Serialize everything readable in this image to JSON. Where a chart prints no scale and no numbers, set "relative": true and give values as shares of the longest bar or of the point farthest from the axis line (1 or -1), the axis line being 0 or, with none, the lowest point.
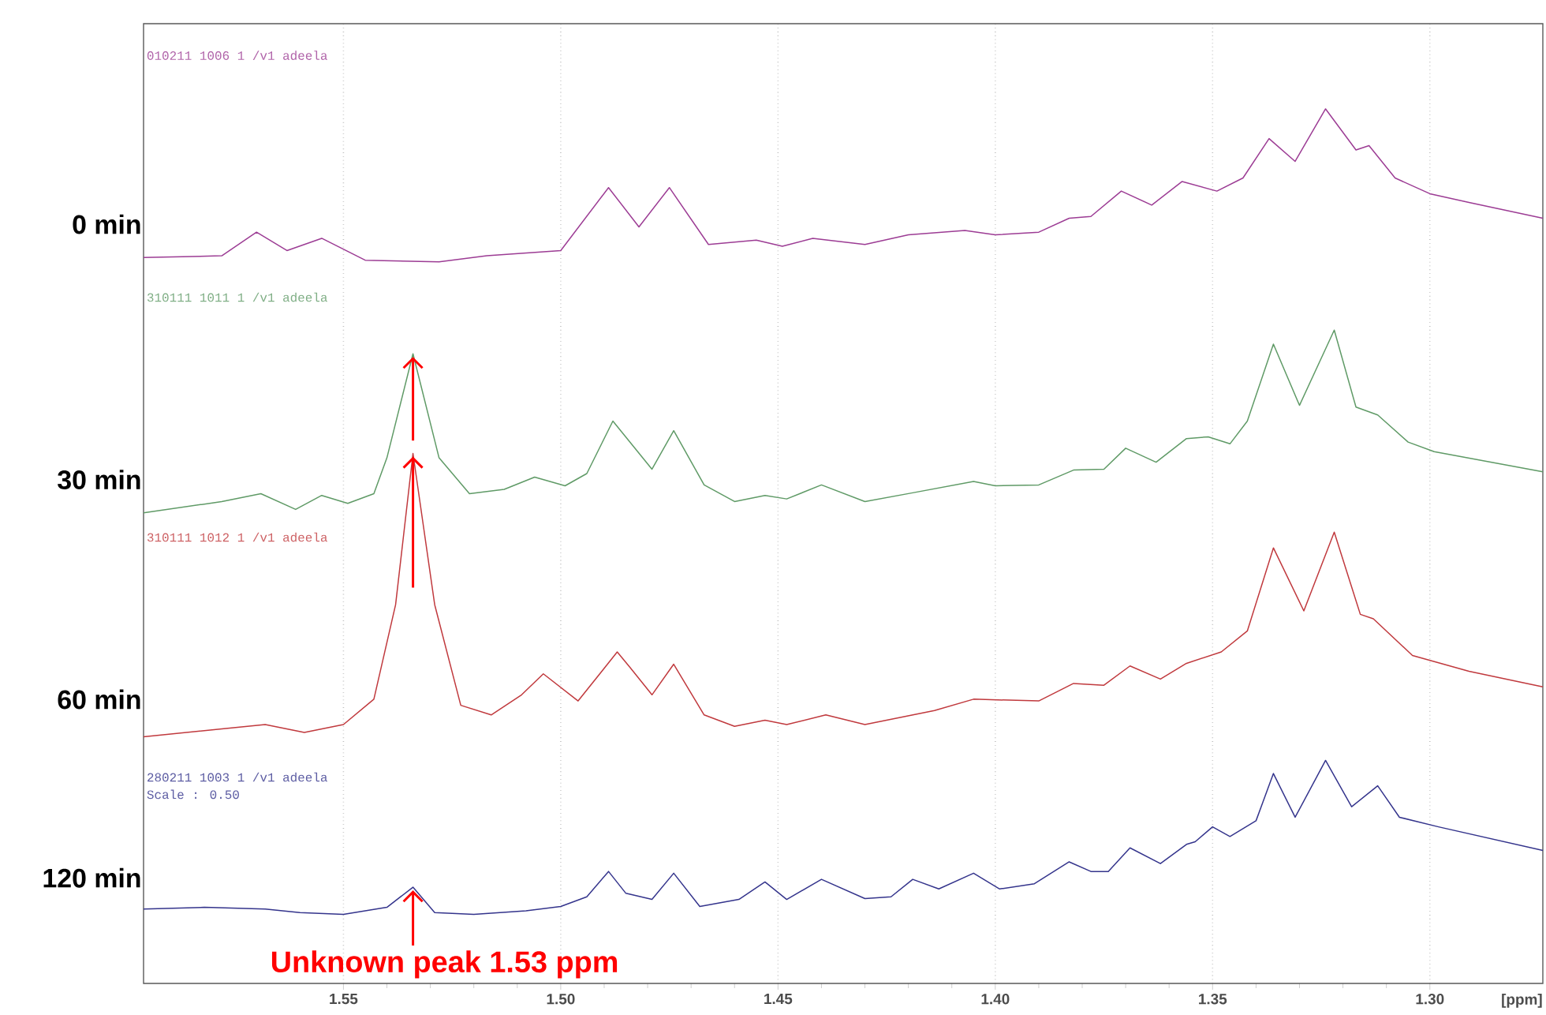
{
  "chart_data": {
    "type": "line",
    "relative": true,
    "xlabel": "[ppm]",
    "xlim": [
      1.596,
      1.274
    ],
    "xticks": [
      1.55,
      {
        "value": 1.5,
        "label": "1.50"
      },
      1.45,
      {
        "value": 1.4,
        "label": "1.40"
      },
      1.35,
      {
        "value": 1.3,
        "label": "1.30"
      }
    ],
    "grid": "x",
    "marker": "none",
    "line_style": "solid",
    "annotations": [
      "010211   1006   1   /v1   adeela",
      "310111   1011   1   /v1   adeela",
      "310111   1012   1   /v1   adeela",
      "280211   1003   1   /v1   adeela",
      "Scale : 0.50",
      {
        "text": "Unknown peak 1.53 ppm",
        "x": 1.534,
        "y": 0.11
      }
    ],
    "series": [
      {
        "name": "0 min",
        "color": "#9c3c94",
        "x": [
          1.596,
          1.578,
          1.57,
          1.563,
          1.555,
          1.545,
          1.528,
          1.517,
          1.5,
          1.489,
          1.482,
          1.475,
          1.466,
          1.455,
          1.449,
          1.442,
          1.43,
          1.42,
          1.407,
          1.4,
          1.39,
          1.383,
          1.378,
          1.371,
          1.364,
          1.357,
          1.349,
          1.343,
          1.337,
          1.331,
          1.324,
          1.317,
          1.314,
          1.308,
          1.3,
          1.291,
          1.274
        ],
        "values": [
          0.83,
          0.832,
          0.859,
          0.838,
          0.852,
          0.827,
          0.825,
          0.832,
          0.838,
          0.91,
          0.865,
          0.91,
          0.845,
          0.85,
          0.843,
          0.852,
          0.845,
          0.856,
          0.861,
          0.856,
          0.859,
          0.875,
          0.877,
          0.906,
          0.89,
          0.917,
          0.906,
          0.921,
          0.966,
          0.94,
          1.0,
          0.953,
          0.958,
          0.921,
          0.903,
          0.893,
          0.875
        ]
      },
      {
        "name": "30 min",
        "color": "#5f9a66",
        "x": [
          1.596,
          1.578,
          1.569,
          1.561,
          1.555,
          1.549,
          1.543,
          1.54,
          1.534,
          1.528,
          1.521,
          1.513,
          1.506,
          1.499,
          1.494,
          1.488,
          1.479,
          1.474,
          1.467,
          1.46,
          1.453,
          1.448,
          1.44,
          1.43,
          1.419,
          1.405,
          1.4,
          1.39,
          1.382,
          1.375,
          1.37,
          1.363,
          1.356,
          1.351,
          1.346,
          1.342,
          1.336,
          1.33,
          1.322,
          1.317,
          1.312,
          1.305,
          1.299,
          1.274
        ],
        "values": [
          0.538,
          0.551,
          0.56,
          0.542,
          0.558,
          0.549,
          0.56,
          0.601,
          0.72,
          0.601,
          0.56,
          0.565,
          0.579,
          0.569,
          0.583,
          0.643,
          0.588,
          0.632,
          0.57,
          0.551,
          0.558,
          0.554,
          0.57,
          0.551,
          0.561,
          0.574,
          0.569,
          0.57,
          0.587,
          0.588,
          0.612,
          0.596,
          0.623,
          0.625,
          0.617,
          0.643,
          0.731,
          0.661,
          0.747,
          0.659,
          0.65,
          0.619,
          0.608,
          0.585
        ]
      },
      {
        "name": "60 min",
        "color": "#c0393d",
        "x": [
          1.596,
          1.578,
          1.568,
          1.559,
          1.55,
          1.543,
          1.538,
          1.534,
          1.529,
          1.523,
          1.516,
          1.509,
          1.504,
          1.496,
          1.487,
          1.484,
          1.479,
          1.474,
          1.467,
          1.46,
          1.453,
          1.448,
          1.439,
          1.43,
          1.414,
          1.405,
          1.39,
          1.382,
          1.375,
          1.369,
          1.362,
          1.356,
          1.348,
          1.342,
          1.336,
          1.329,
          1.322,
          1.316,
          1.313,
          1.304,
          1.291,
          1.274
        ],
        "values": [
          0.282,
          0.291,
          0.296,
          0.287,
          0.296,
          0.325,
          0.433,
          0.606,
          0.433,
          0.318,
          0.307,
          0.33,
          0.354,
          0.323,
          0.379,
          0.361,
          0.33,
          0.365,
          0.307,
          0.294,
          0.301,
          0.296,
          0.307,
          0.296,
          0.312,
          0.325,
          0.323,
          0.343,
          0.341,
          0.363,
          0.348,
          0.366,
          0.379,
          0.403,
          0.498,
          0.426,
          0.516,
          0.422,
          0.417,
          0.375,
          0.357,
          0.339
        ]
      },
      {
        "name": "120 min",
        "color": "#34348c",
        "x": [
          1.596,
          1.582,
          1.568,
          1.56,
          1.55,
          1.54,
          1.534,
          1.529,
          1.52,
          1.508,
          1.5,
          1.494,
          1.489,
          1.485,
          1.479,
          1.474,
          1.468,
          1.459,
          1.453,
          1.448,
          1.44,
          1.43,
          1.424,
          1.419,
          1.413,
          1.405,
          1.399,
          1.391,
          1.383,
          1.378,
          1.374,
          1.369,
          1.362,
          1.356,
          1.354,
          1.35,
          1.346,
          1.34,
          1.336,
          1.331,
          1.324,
          1.318,
          1.312,
          1.307,
          1.298,
          1.274
        ],
        "values": [
          0.085,
          0.087,
          0.085,
          0.081,
          0.079,
          0.087,
          0.11,
          0.081,
          0.079,
          0.083,
          0.088,
          0.099,
          0.128,
          0.103,
          0.096,
          0.126,
          0.088,
          0.096,
          0.116,
          0.096,
          0.119,
          0.097,
          0.099,
          0.119,
          0.108,
          0.126,
          0.108,
          0.114,
          0.139,
          0.128,
          0.128,
          0.155,
          0.137,
          0.159,
          0.162,
          0.179,
          0.168,
          0.186,
          0.24,
          0.19,
          0.255,
          0.202,
          0.226,
          0.19,
          0.179,
          0.152
        ]
      }
    ]
  }
}
